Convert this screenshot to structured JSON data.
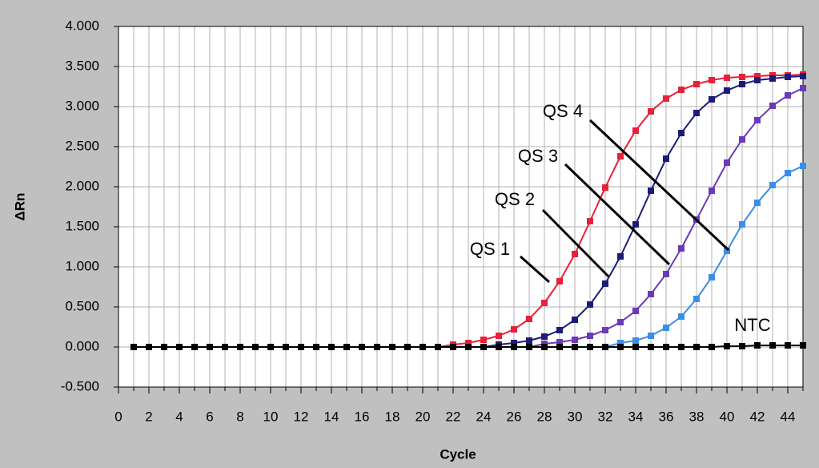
{
  "chart_data": {
    "type": "line",
    "x_label": "Cycle",
    "y_label": "ΔRn",
    "x": [
      1,
      2,
      3,
      4,
      5,
      6,
      7,
      8,
      9,
      10,
      11,
      12,
      13,
      14,
      15,
      16,
      17,
      18,
      19,
      20,
      21,
      22,
      23,
      24,
      25,
      26,
      27,
      28,
      29,
      30,
      31,
      32,
      33,
      34,
      35,
      36,
      37,
      38,
      39,
      40,
      41,
      42,
      43,
      44,
      45
    ],
    "series": [
      {
        "name": "QS 1",
        "color": "#e8203a",
        "values": [
          0,
          0,
          0,
          0,
          0,
          0,
          0,
          0,
          0,
          0,
          0,
          0,
          0,
          0,
          0,
          0,
          0,
          0,
          0,
          0,
          0,
          0.03,
          0.05,
          0.09,
          0.14,
          0.22,
          0.35,
          0.55,
          0.82,
          1.16,
          1.57,
          1.99,
          2.38,
          2.7,
          2.94,
          3.1,
          3.21,
          3.28,
          3.33,
          3.36,
          3.37,
          3.38,
          3.39,
          3.39,
          3.4
        ]
      },
      {
        "name": "QS 2",
        "color": "#1c1c78",
        "values": [
          0,
          0,
          0,
          0,
          0,
          0,
          0,
          0,
          0,
          0,
          0,
          0,
          0,
          0,
          0,
          0,
          0,
          0,
          0,
          0,
          0,
          0,
          0,
          0,
          0.03,
          0.05,
          0.08,
          0.13,
          0.21,
          0.34,
          0.53,
          0.79,
          1.13,
          1.53,
          1.95,
          2.35,
          2.67,
          2.92,
          3.09,
          3.2,
          3.28,
          3.33,
          3.35,
          3.37,
          3.38
        ]
      },
      {
        "name": "QS 3",
        "color": "#6a3ab8",
        "values": [
          0,
          0,
          0,
          0,
          0,
          0,
          0,
          0,
          0,
          0,
          0,
          0,
          0,
          0,
          0,
          0,
          0,
          0,
          0,
          0,
          0,
          0,
          0,
          0,
          0,
          0,
          0,
          0.04,
          0.06,
          0.09,
          0.14,
          0.21,
          0.31,
          0.45,
          0.66,
          0.91,
          1.23,
          1.59,
          1.95,
          2.3,
          2.59,
          2.83,
          3.01,
          3.14,
          3.23
        ]
      },
      {
        "name": "QS 4",
        "color": "#3a8ee8",
        "values": [
          0,
          0,
          0,
          0,
          0,
          0,
          0,
          0,
          0,
          0,
          0,
          0,
          0,
          0,
          0,
          0,
          0,
          0,
          0,
          0,
          0,
          0,
          0,
          0,
          0,
          0,
          0,
          0,
          0,
          0,
          0,
          0,
          0.05,
          0.08,
          0.14,
          0.24,
          0.38,
          0.6,
          0.87,
          1.2,
          1.53,
          1.8,
          2.02,
          2.17,
          2.26
        ]
      },
      {
        "name": "NTC",
        "color": "#000000",
        "values": [
          0,
          0,
          0,
          0,
          0,
          0,
          0,
          0,
          0,
          0,
          0,
          0,
          0,
          0,
          0,
          0,
          0,
          0,
          0,
          0,
          0,
          0,
          0,
          0,
          0,
          0,
          0,
          0,
          0,
          0,
          0,
          0,
          0,
          0,
          0,
          0,
          0,
          0,
          0,
          0.01,
          0.01,
          0.02,
          0.02,
          0.02,
          0.02
        ]
      }
    ],
    "xlim": [
      0,
      45
    ],
    "xticks": [
      0,
      2,
      4,
      6,
      8,
      10,
      12,
      14,
      16,
      18,
      20,
      22,
      24,
      26,
      28,
      30,
      32,
      34,
      36,
      38,
      40,
      42,
      44
    ],
    "xminorticks": [
      1,
      3,
      5,
      7,
      9,
      11,
      13,
      15,
      17,
      19,
      21,
      23,
      25,
      27,
      29,
      31,
      33,
      35,
      37,
      39,
      41,
      43,
      45
    ],
    "ylim": [
      -0.5,
      4
    ],
    "yticks": [
      {
        "value": -0.5,
        "label": "-0.500"
      },
      {
        "value": 0,
        "label": "0.000"
      },
      {
        "value": 0.5,
        "label": "0.500"
      },
      {
        "value": 1,
        "label": "1.000"
      },
      {
        "value": 1.5,
        "label": "1.500"
      },
      {
        "value": 2,
        "label": "2.000"
      },
      {
        "value": 2.5,
        "label": "2.500"
      },
      {
        "value": 3,
        "label": "3.000"
      },
      {
        "value": 3.5,
        "label": "3.500"
      },
      {
        "value": 4,
        "label": "4.000"
      }
    ],
    "grid": true
  }
}
